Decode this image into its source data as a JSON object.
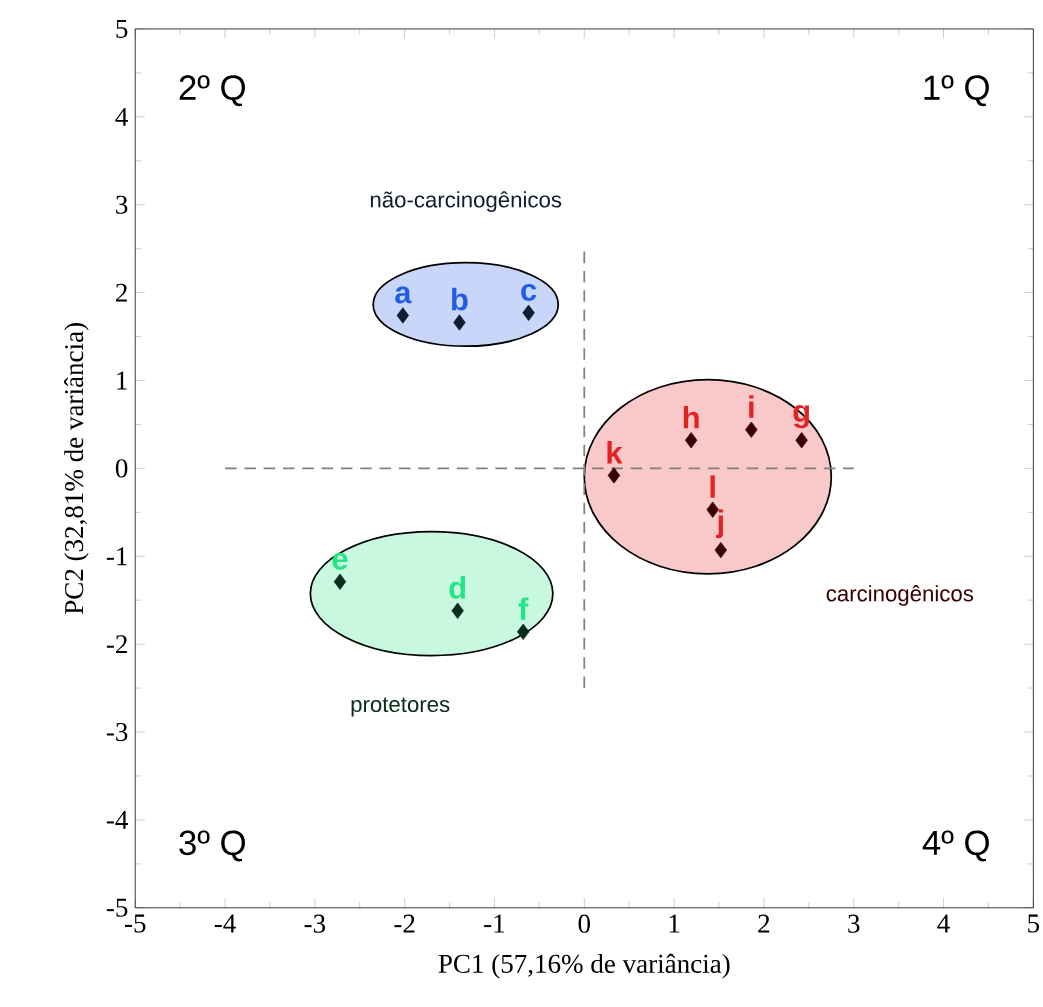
{
  "chart_data": {
    "type": "scatter",
    "xlabel": "PC1 (57,16% de variância)",
    "ylabel": "PC2 (32,81% de variância)",
    "xlim": [
      -5,
      5
    ],
    "ylim": [
      -5,
      5
    ],
    "xticks": [
      -5,
      -4,
      -3,
      -2,
      -1,
      0,
      1,
      2,
      3,
      4,
      5
    ],
    "yticks": [
      -5,
      -4,
      -3,
      -2,
      -1,
      0,
      1,
      2,
      3,
      4,
      5
    ],
    "grid": false,
    "marker": "diamond",
    "series": [
      {
        "name": "não-carcinogênicos",
        "color": "#121c33",
        "x": [
          -2.02,
          -1.39,
          -0.62
        ],
        "values": [
          1.74,
          1.66,
          1.77
        ],
        "value_labels": [
          "a",
          "b",
          "c"
        ]
      },
      {
        "name": "protetores",
        "color": "#0a2e1c",
        "x": [
          -1.41,
          -2.72,
          -0.68
        ],
        "values": [
          -1.62,
          -1.29,
          -1.86
        ],
        "value_labels": [
          "d",
          "e",
          "f"
        ]
      },
      {
        "name": "carcinogênicos",
        "color": "#3a0000",
        "x": [
          2.42,
          1.19,
          1.86,
          1.52,
          0.33,
          1.43
        ],
        "values": [
          0.32,
          0.32,
          0.44,
          -0.93,
          -0.08,
          -0.47
        ],
        "value_labels": [
          "g",
          "h",
          "i",
          "j",
          "k",
          "l"
        ]
      }
    ],
    "ref_lines": [
      {
        "axis": "x",
        "value": 0,
        "line_style": "dashed",
        "color": "#808080"
      },
      {
        "axis": "y",
        "value": 0,
        "line_style": "dashed",
        "color": "#808080"
      }
    ],
    "annotations": [
      "2º Q",
      "1º Q",
      "3º Q",
      "4º Q"
    ]
  }
}
